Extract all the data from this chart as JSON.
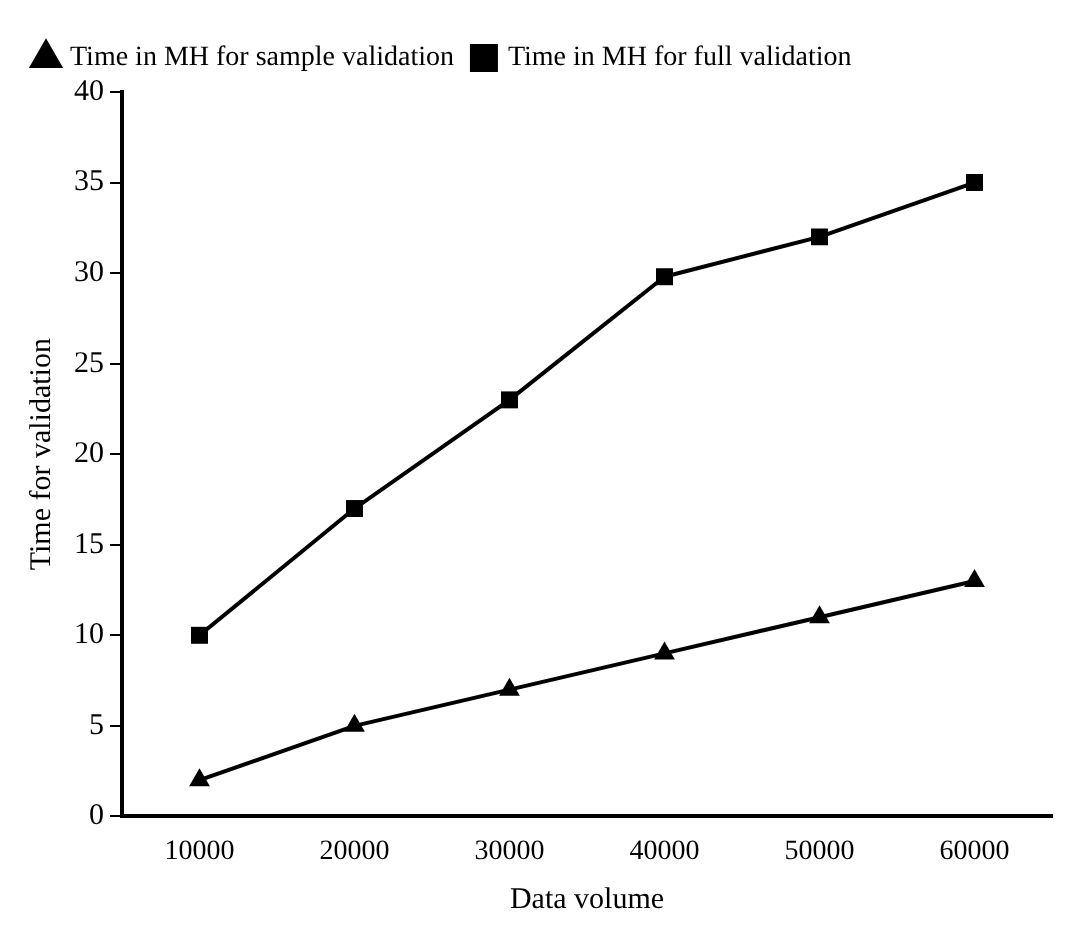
{
  "chart_data": {
    "type": "line",
    "xlabel": "Data volume",
    "ylabel": "Time for validation",
    "categories": [
      "10000",
      "20000",
      "30000",
      "40000",
      "50000",
      "60000"
    ],
    "series": [
      {
        "name": "Time in MH for sample validation",
        "color": "#000000",
        "marker": "triangle",
        "values": [
          2,
          5,
          7,
          9,
          11,
          13
        ]
      },
      {
        "name": "Time in MH for full validation",
        "color": "#000000",
        "marker": "square",
        "values": [
          10,
          17,
          23,
          29.8,
          32,
          35
        ]
      }
    ],
    "ylim": [
      0,
      40
    ],
    "yticks": [
      0,
      5,
      10,
      15,
      20,
      25,
      30,
      35,
      40
    ],
    "grid": false,
    "legend": "top left",
    "line_style": "solid"
  }
}
